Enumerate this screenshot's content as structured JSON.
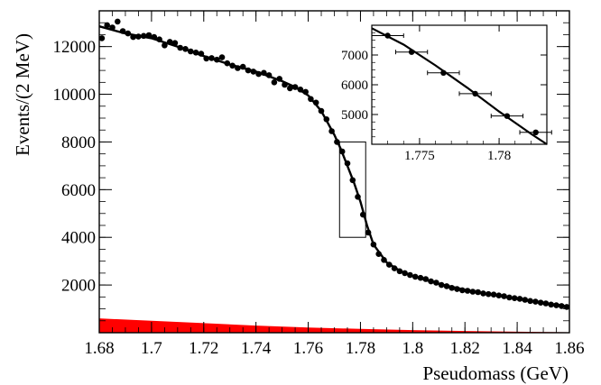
{
  "chart_data": [
    {
      "type": "scatter",
      "xlabel": "Pseudomass (GeV)",
      "ylabel": "Events/(2 MeV)",
      "xlim": [
        1.68,
        1.86
      ],
      "ylim": [
        0,
        13500
      ],
      "x_ticks": [
        1.68,
        1.7,
        1.72,
        1.74,
        1.76,
        1.78,
        1.8,
        1.82,
        1.84,
        1.86
      ],
      "x_tick_labels": [
        "1.68",
        "1.7",
        "1.72",
        "1.74",
        "1.76",
        "1.78",
        "1.8",
        "1.82",
        "1.84",
        "1.86"
      ],
      "y_ticks": [
        2000,
        4000,
        6000,
        8000,
        10000,
        12000
      ],
      "y_tick_labels": [
        "2000",
        "4000",
        "6000",
        "8000",
        "10000",
        "12000"
      ],
      "grid": false,
      "colors": {
        "data": "#000000",
        "fit": "#000000",
        "background": "#ff0000"
      },
      "series": [
        {
          "role": "data-points",
          "points": [
            [
              1.681,
              12350
            ],
            [
              1.683,
              12900
            ],
            [
              1.685,
              12800
            ],
            [
              1.687,
              13050
            ],
            [
              1.689,
              12650
            ],
            [
              1.691,
              12550
            ],
            [
              1.693,
              12400
            ],
            [
              1.695,
              12420
            ],
            [
              1.697,
              12450
            ],
            [
              1.699,
              12480
            ],
            [
              1.701,
              12400
            ],
            [
              1.703,
              12300
            ],
            [
              1.705,
              12050
            ],
            [
              1.707,
              12200
            ],
            [
              1.709,
              12150
            ],
            [
              1.711,
              11950
            ],
            [
              1.713,
              11900
            ],
            [
              1.715,
              11800
            ],
            [
              1.717,
              11750
            ],
            [
              1.719,
              11700
            ],
            [
              1.721,
              11500
            ],
            [
              1.723,
              11520
            ],
            [
              1.725,
              11450
            ],
            [
              1.727,
              11550
            ],
            [
              1.729,
              11300
            ],
            [
              1.731,
              11200
            ],
            [
              1.733,
              11100
            ],
            [
              1.735,
              11150
            ],
            [
              1.737,
              11000
            ],
            [
              1.739,
              10950
            ],
            [
              1.741,
              10850
            ],
            [
              1.743,
              10900
            ],
            [
              1.745,
              10800
            ],
            [
              1.747,
              10500
            ],
            [
              1.749,
              10650
            ],
            [
              1.751,
              10400
            ],
            [
              1.753,
              10250
            ],
            [
              1.755,
              10300
            ],
            [
              1.757,
              10200
            ],
            [
              1.759,
              10100
            ],
            [
              1.761,
              9800
            ],
            [
              1.763,
              9650
            ],
            [
              1.765,
              9300
            ],
            [
              1.767,
              8950
            ],
            [
              1.769,
              8450
            ],
            [
              1.771,
              8000
            ],
            [
              1.773,
              7600
            ],
            [
              1.775,
              7100
            ],
            [
              1.777,
              6400
            ],
            [
              1.779,
              5700
            ],
            [
              1.781,
              4950
            ],
            [
              1.783,
              4200
            ],
            [
              1.785,
              3700
            ],
            [
              1.787,
              3300
            ],
            [
              1.789,
              3050
            ],
            [
              1.791,
              2850
            ],
            [
              1.793,
              2700
            ],
            [
              1.795,
              2580
            ],
            [
              1.797,
              2500
            ],
            [
              1.799,
              2420
            ],
            [
              1.801,
              2350
            ],
            [
              1.803,
              2300
            ],
            [
              1.805,
              2250
            ],
            [
              1.807,
              2150
            ],
            [
              1.809,
              2100
            ],
            [
              1.811,
              2000
            ],
            [
              1.813,
              1950
            ],
            [
              1.815,
              1880
            ],
            [
              1.817,
              1830
            ],
            [
              1.819,
              1780
            ],
            [
              1.821,
              1760
            ],
            [
              1.823,
              1720
            ],
            [
              1.825,
              1700
            ],
            [
              1.827,
              1650
            ],
            [
              1.829,
              1620
            ],
            [
              1.831,
              1600
            ],
            [
              1.833,
              1560
            ],
            [
              1.835,
              1530
            ],
            [
              1.837,
              1480
            ],
            [
              1.839,
              1450
            ],
            [
              1.841,
              1420
            ],
            [
              1.843,
              1380
            ],
            [
              1.845,
              1330
            ],
            [
              1.847,
              1300
            ],
            [
              1.849,
              1260
            ],
            [
              1.851,
              1230
            ],
            [
              1.853,
              1180
            ],
            [
              1.855,
              1150
            ],
            [
              1.857,
              1120
            ],
            [
              1.859,
              1080
            ]
          ]
        },
        {
          "role": "fit-curve",
          "points": [
            [
              1.68,
              12850
            ],
            [
              1.69,
              12550
            ],
            [
              1.7,
              12350
            ],
            [
              1.71,
              12000
            ],
            [
              1.72,
              11600
            ],
            [
              1.73,
              11250
            ],
            [
              1.74,
              10950
            ],
            [
              1.75,
              10550
            ],
            [
              1.755,
              10300
            ],
            [
              1.76,
              9950
            ],
            [
              1.765,
              9300
            ],
            [
              1.77,
              8300
            ],
            [
              1.7725,
              7700
            ],
            [
              1.775,
              7000
            ],
            [
              1.7775,
              6300
            ],
            [
              1.78,
              5500
            ],
            [
              1.7825,
              4500
            ],
            [
              1.785,
              3700
            ],
            [
              1.79,
              2950
            ],
            [
              1.795,
              2600
            ],
            [
              1.8,
              2380
            ],
            [
              1.81,
              2050
            ],
            [
              1.82,
              1800
            ],
            [
              1.83,
              1600
            ],
            [
              1.84,
              1420
            ],
            [
              1.85,
              1250
            ],
            [
              1.86,
              1100
            ]
          ]
        },
        {
          "role": "background-band",
          "points": [
            [
              1.68,
              600
            ],
            [
              1.7,
              500
            ],
            [
              1.72,
              400
            ],
            [
              1.74,
              300
            ],
            [
              1.76,
              220
            ],
            [
              1.78,
              160
            ],
            [
              1.8,
              110
            ],
            [
              1.82,
              70
            ],
            [
              1.84,
              40
            ],
            [
              1.86,
              20
            ]
          ]
        }
      ],
      "annotations": [
        {
          "type": "zoom-box",
          "x_range": [
            1.772,
            1.782
          ],
          "y_range": [
            4000,
            8000
          ]
        }
      ]
    },
    {
      "type": "scatter",
      "role": "inset",
      "xlim": [
        1.772,
        1.783
      ],
      "ylim": [
        4000,
        8000
      ],
      "x_ticks": [
        1.775,
        1.78
      ],
      "x_tick_labels": [
        "1.775",
        "1.78"
      ],
      "y_ticks": [
        5000,
        6000,
        7000
      ],
      "y_tick_labels": [
        "5000",
        "6000",
        "7000"
      ],
      "series": [
        {
          "role": "data-points",
          "points": [
            [
              1.773,
              7650
            ],
            [
              1.7745,
              7100
            ],
            [
              1.7765,
              6400
            ],
            [
              1.7785,
              5700
            ],
            [
              1.7805,
              4950
            ],
            [
              1.7823,
              4400
            ]
          ],
          "x_err": 0.001
        },
        {
          "role": "fit-curve",
          "points": [
            [
              1.772,
              7900
            ],
            [
              1.774,
              7350
            ],
            [
              1.776,
              6650
            ],
            [
              1.778,
              5900
            ],
            [
              1.78,
              5100
            ],
            [
              1.782,
              4350
            ],
            [
              1.783,
              4000
            ]
          ]
        }
      ]
    }
  ]
}
